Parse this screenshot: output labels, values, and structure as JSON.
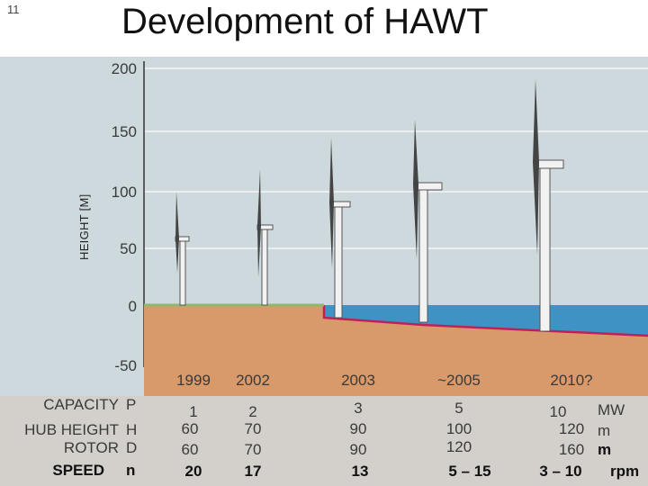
{
  "slide_number": "11",
  "title": "Development of HAWT",
  "y_axis": {
    "label": "HEIGHT [M]",
    "ticks": [
      "200",
      "150",
      "100",
      "50",
      "0",
      "-50"
    ]
  },
  "years": [
    "1999",
    "2002",
    "2003",
    "~2005",
    "2010?"
  ],
  "rows": [
    {
      "label": "CAPACITY",
      "symbol": "P",
      "values": [
        "1",
        "2",
        "3",
        "5",
        "10"
      ],
      "unit": "MW"
    },
    {
      "label": "HUB HEIGHT",
      "symbol": "H",
      "values": [
        "60",
        "70",
        "90",
        "100",
        "120"
      ],
      "unit": "m"
    },
    {
      "label": "ROTOR",
      "symbol": "D",
      "values": [
        "60",
        "70",
        "90",
        "120",
        "160"
      ],
      "unit": "m"
    },
    {
      "label": "SPEED",
      "symbol": "n",
      "values": [
        "20",
        "17",
        "13",
        "5 – 15",
        "3 – 10"
      ],
      "unit": "rpm"
    }
  ],
  "colors": {
    "sky": "#cdd9dc",
    "ground": "#d89a6a",
    "sea": "#3f93c4",
    "grass": "#8fb86b",
    "seabed_line": "#c0205a",
    "tower": "#f2f2f2"
  }
}
